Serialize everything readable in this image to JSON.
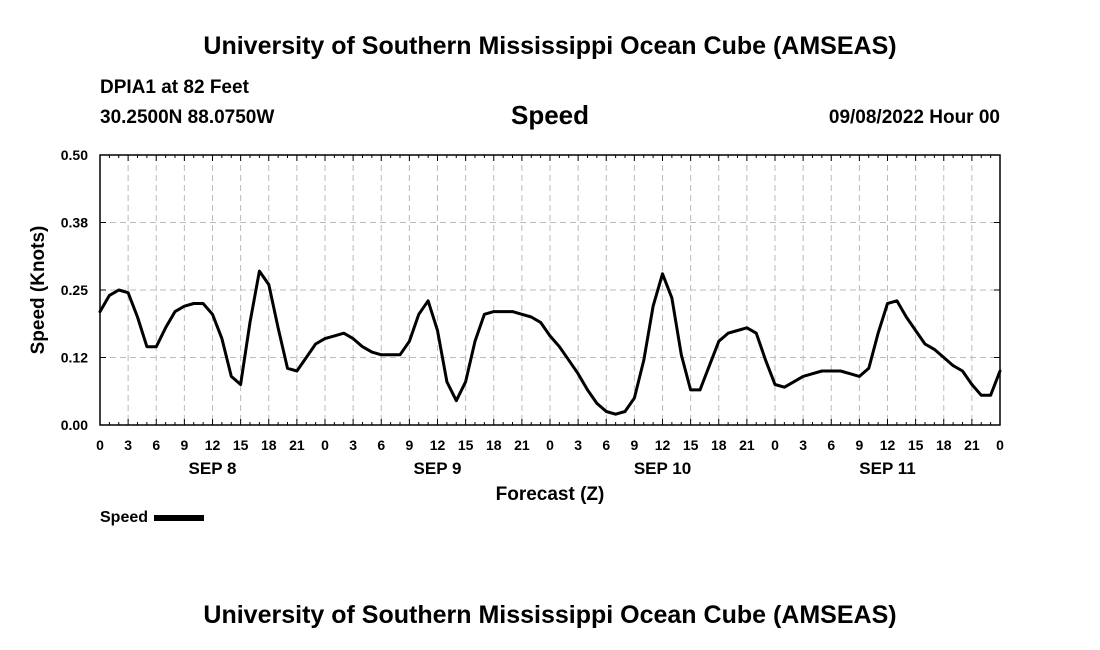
{
  "header": {
    "title": "University of Southern Mississippi Ocean Cube (AMSEAS)",
    "station": "DPIA1 at 82 Feet",
    "coords": "30.2500N  88.0750W",
    "datetime": "09/08/2022 Hour 00",
    "footer_title": "University of Southern Mississippi Ocean Cube (AMSEAS)"
  },
  "legend": {
    "label": "Speed"
  },
  "colors": {
    "line": "#000000",
    "grid": "#bbbbbb",
    "background": "#ffffff"
  },
  "chart_data": {
    "type": "line",
    "title": "Speed",
    "xlabel": "Forecast (Z)",
    "ylabel": "Speed (Knots)",
    "ylim": [
      0,
      0.5
    ],
    "xlim": [
      0,
      96
    ],
    "grid": true,
    "legend_position": "bottom-left",
    "y_ticks": [
      0,
      0.125,
      0.25,
      0.375,
      0.5
    ],
    "y_tick_labels": [
      "0.00",
      "0.12",
      "0.25",
      "0.38",
      "0.50"
    ],
    "x_ticks": [
      0,
      3,
      6,
      9,
      12,
      15,
      18,
      21,
      24,
      27,
      30,
      33,
      36,
      39,
      42,
      45,
      48,
      51,
      54,
      57,
      60,
      63,
      66,
      69,
      72,
      75,
      78,
      81,
      84,
      87,
      90,
      93,
      96
    ],
    "x_tick_labels": [
      "0",
      "3",
      "6",
      "9",
      "12",
      "15",
      "18",
      "21",
      "0",
      "3",
      "6",
      "9",
      "12",
      "15",
      "18",
      "21",
      "0",
      "3",
      "6",
      "9",
      "12",
      "15",
      "18",
      "21",
      "0",
      "3",
      "6",
      "9",
      "12",
      "15",
      "18",
      "21",
      "0"
    ],
    "day_labels": [
      {
        "label": "SEP 8",
        "hour": 12
      },
      {
        "label": "SEP 9",
        "hour": 36
      },
      {
        "label": "SEP 10",
        "hour": 60
      },
      {
        "label": "SEP 11",
        "hour": 84
      }
    ],
    "series": [
      {
        "name": "Speed",
        "x": [
          0,
          1,
          2,
          3,
          4,
          5,
          6,
          7,
          8,
          9,
          10,
          11,
          12,
          13,
          14,
          15,
          16,
          17,
          18,
          19,
          20,
          21,
          22,
          23,
          24,
          25,
          26,
          27,
          28,
          29,
          30,
          31,
          32,
          33,
          34,
          35,
          36,
          37,
          38,
          39,
          40,
          41,
          42,
          43,
          44,
          45,
          46,
          47,
          48,
          49,
          50,
          51,
          52,
          53,
          54,
          55,
          56,
          57,
          58,
          59,
          60,
          61,
          62,
          63,
          64,
          65,
          66,
          67,
          68,
          69,
          70,
          71,
          72,
          73,
          74,
          75,
          76,
          77,
          78,
          79,
          80,
          81,
          82,
          83,
          84,
          85,
          86,
          87,
          88,
          89,
          90,
          91,
          92,
          93,
          94,
          95,
          96
        ],
        "values": [
          0.21,
          0.24,
          0.25,
          0.245,
          0.2,
          0.145,
          0.145,
          0.18,
          0.21,
          0.22,
          0.225,
          0.225,
          0.205,
          0.16,
          0.09,
          0.075,
          0.19,
          0.285,
          0.26,
          0.18,
          0.105,
          0.1,
          0.125,
          0.15,
          0.16,
          0.165,
          0.17,
          0.16,
          0.145,
          0.135,
          0.13,
          0.13,
          0.13,
          0.155,
          0.205,
          0.23,
          0.175,
          0.08,
          0.045,
          0.08,
          0.155,
          0.205,
          0.21,
          0.21,
          0.21,
          0.205,
          0.2,
          0.19,
          0.165,
          0.145,
          0.12,
          0.095,
          0.065,
          0.04,
          0.025,
          0.02,
          0.025,
          0.05,
          0.12,
          0.22,
          0.28,
          0.235,
          0.13,
          0.065,
          0.065,
          0.11,
          0.155,
          0.17,
          0.175,
          0.18,
          0.17,
          0.12,
          0.075,
          0.07,
          0.08,
          0.09,
          0.095,
          0.1,
          0.1,
          0.1,
          0.095,
          0.09,
          0.105,
          0.17,
          0.225,
          0.23,
          0.2,
          0.175,
          0.15,
          0.14,
          0.125,
          0.11,
          0.1,
          0.075,
          0.055,
          0.055,
          0.1
        ]
      }
    ]
  }
}
